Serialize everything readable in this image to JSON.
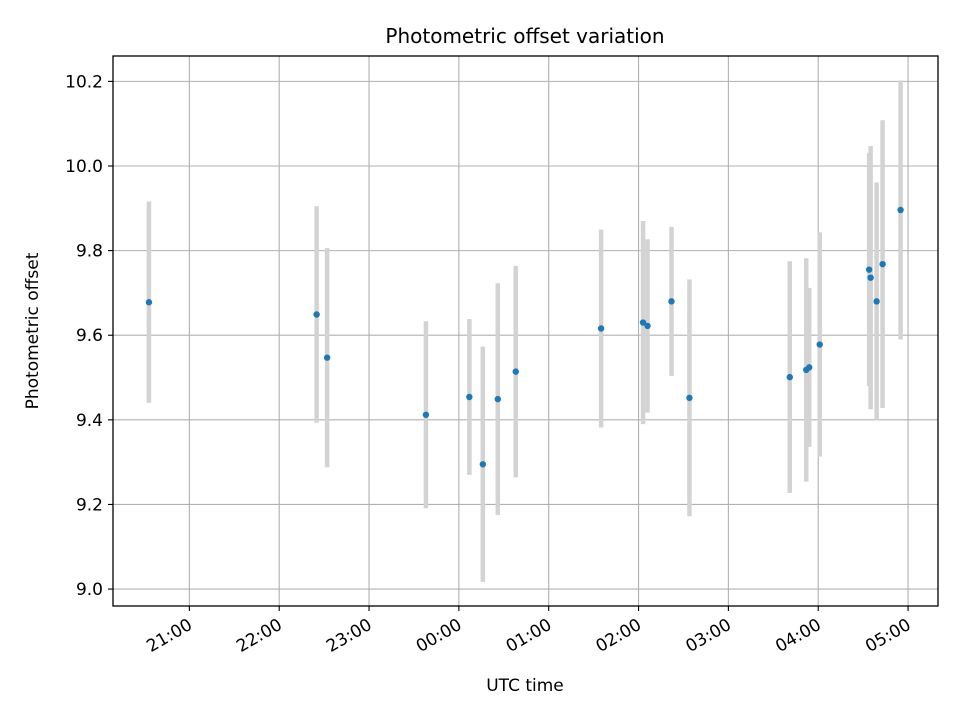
{
  "chart_data": {
    "type": "scatter",
    "title": "Photometric offset variation",
    "xlabel": "UTC time",
    "ylabel": "Photometric offset",
    "grid": true,
    "x_unit": "UTC time of night (hours after 00:00 expressed from 20:00 of previous day)",
    "xlim": [
      "20:09",
      "05:20"
    ],
    "ylim": [
      8.96,
      10.26
    ],
    "x_ticks": [
      "21:00",
      "22:00",
      "23:00",
      "00:00",
      "01:00",
      "02:00",
      "03:00",
      "04:00",
      "05:00"
    ],
    "y_ticks": [
      "9.0",
      "9.2",
      "9.4",
      "9.6",
      "9.8",
      "10.0",
      "10.2"
    ],
    "marker_color": "#1f77b4",
    "errorbar_color": "#d3d3d3",
    "points": [
      {
        "t": "20:33",
        "y": 9.678,
        "err": 0.238
      },
      {
        "t": "22:25",
        "y": 9.649,
        "err": 0.256
      },
      {
        "t": "22:32",
        "y": 9.547,
        "err": 0.259
      },
      {
        "t": "23:38",
        "y": 9.412,
        "err": 0.221
      },
      {
        "t": "00:07",
        "y": 9.454,
        "err": 0.184
      },
      {
        "t": "00:16",
        "y": 9.295,
        "err": 0.278
      },
      {
        "t": "00:26",
        "y": 9.449,
        "err": 0.274
      },
      {
        "t": "00:38",
        "y": 9.514,
        "err": 0.25
      },
      {
        "t": "01:35",
        "y": 9.616,
        "err": 0.234
      },
      {
        "t": "02:03",
        "y": 9.63,
        "err": 0.24
      },
      {
        "t": "02:06",
        "y": 9.622,
        "err": 0.205
      },
      {
        "t": "02:22",
        "y": 9.68,
        "err": 0.176
      },
      {
        "t": "02:34",
        "y": 9.452,
        "err": 0.28
      },
      {
        "t": "03:41",
        "y": 9.501,
        "err": 0.274
      },
      {
        "t": "03:52",
        "y": 9.518,
        "err": 0.264
      },
      {
        "t": "03:54",
        "y": 9.524,
        "err": 0.188
      },
      {
        "t": "04:01",
        "y": 9.578,
        "err": 0.265
      },
      {
        "t": "04:34",
        "y": 9.755,
        "err": 0.275
      },
      {
        "t": "04:35",
        "y": 9.736,
        "err": 0.311
      },
      {
        "t": "04:39",
        "y": 9.68,
        "err": 0.281
      },
      {
        "t": "04:43",
        "y": 9.768,
        "err": 0.34
      },
      {
        "t": "04:55",
        "y": 9.896,
        "err": 0.306
      }
    ]
  }
}
